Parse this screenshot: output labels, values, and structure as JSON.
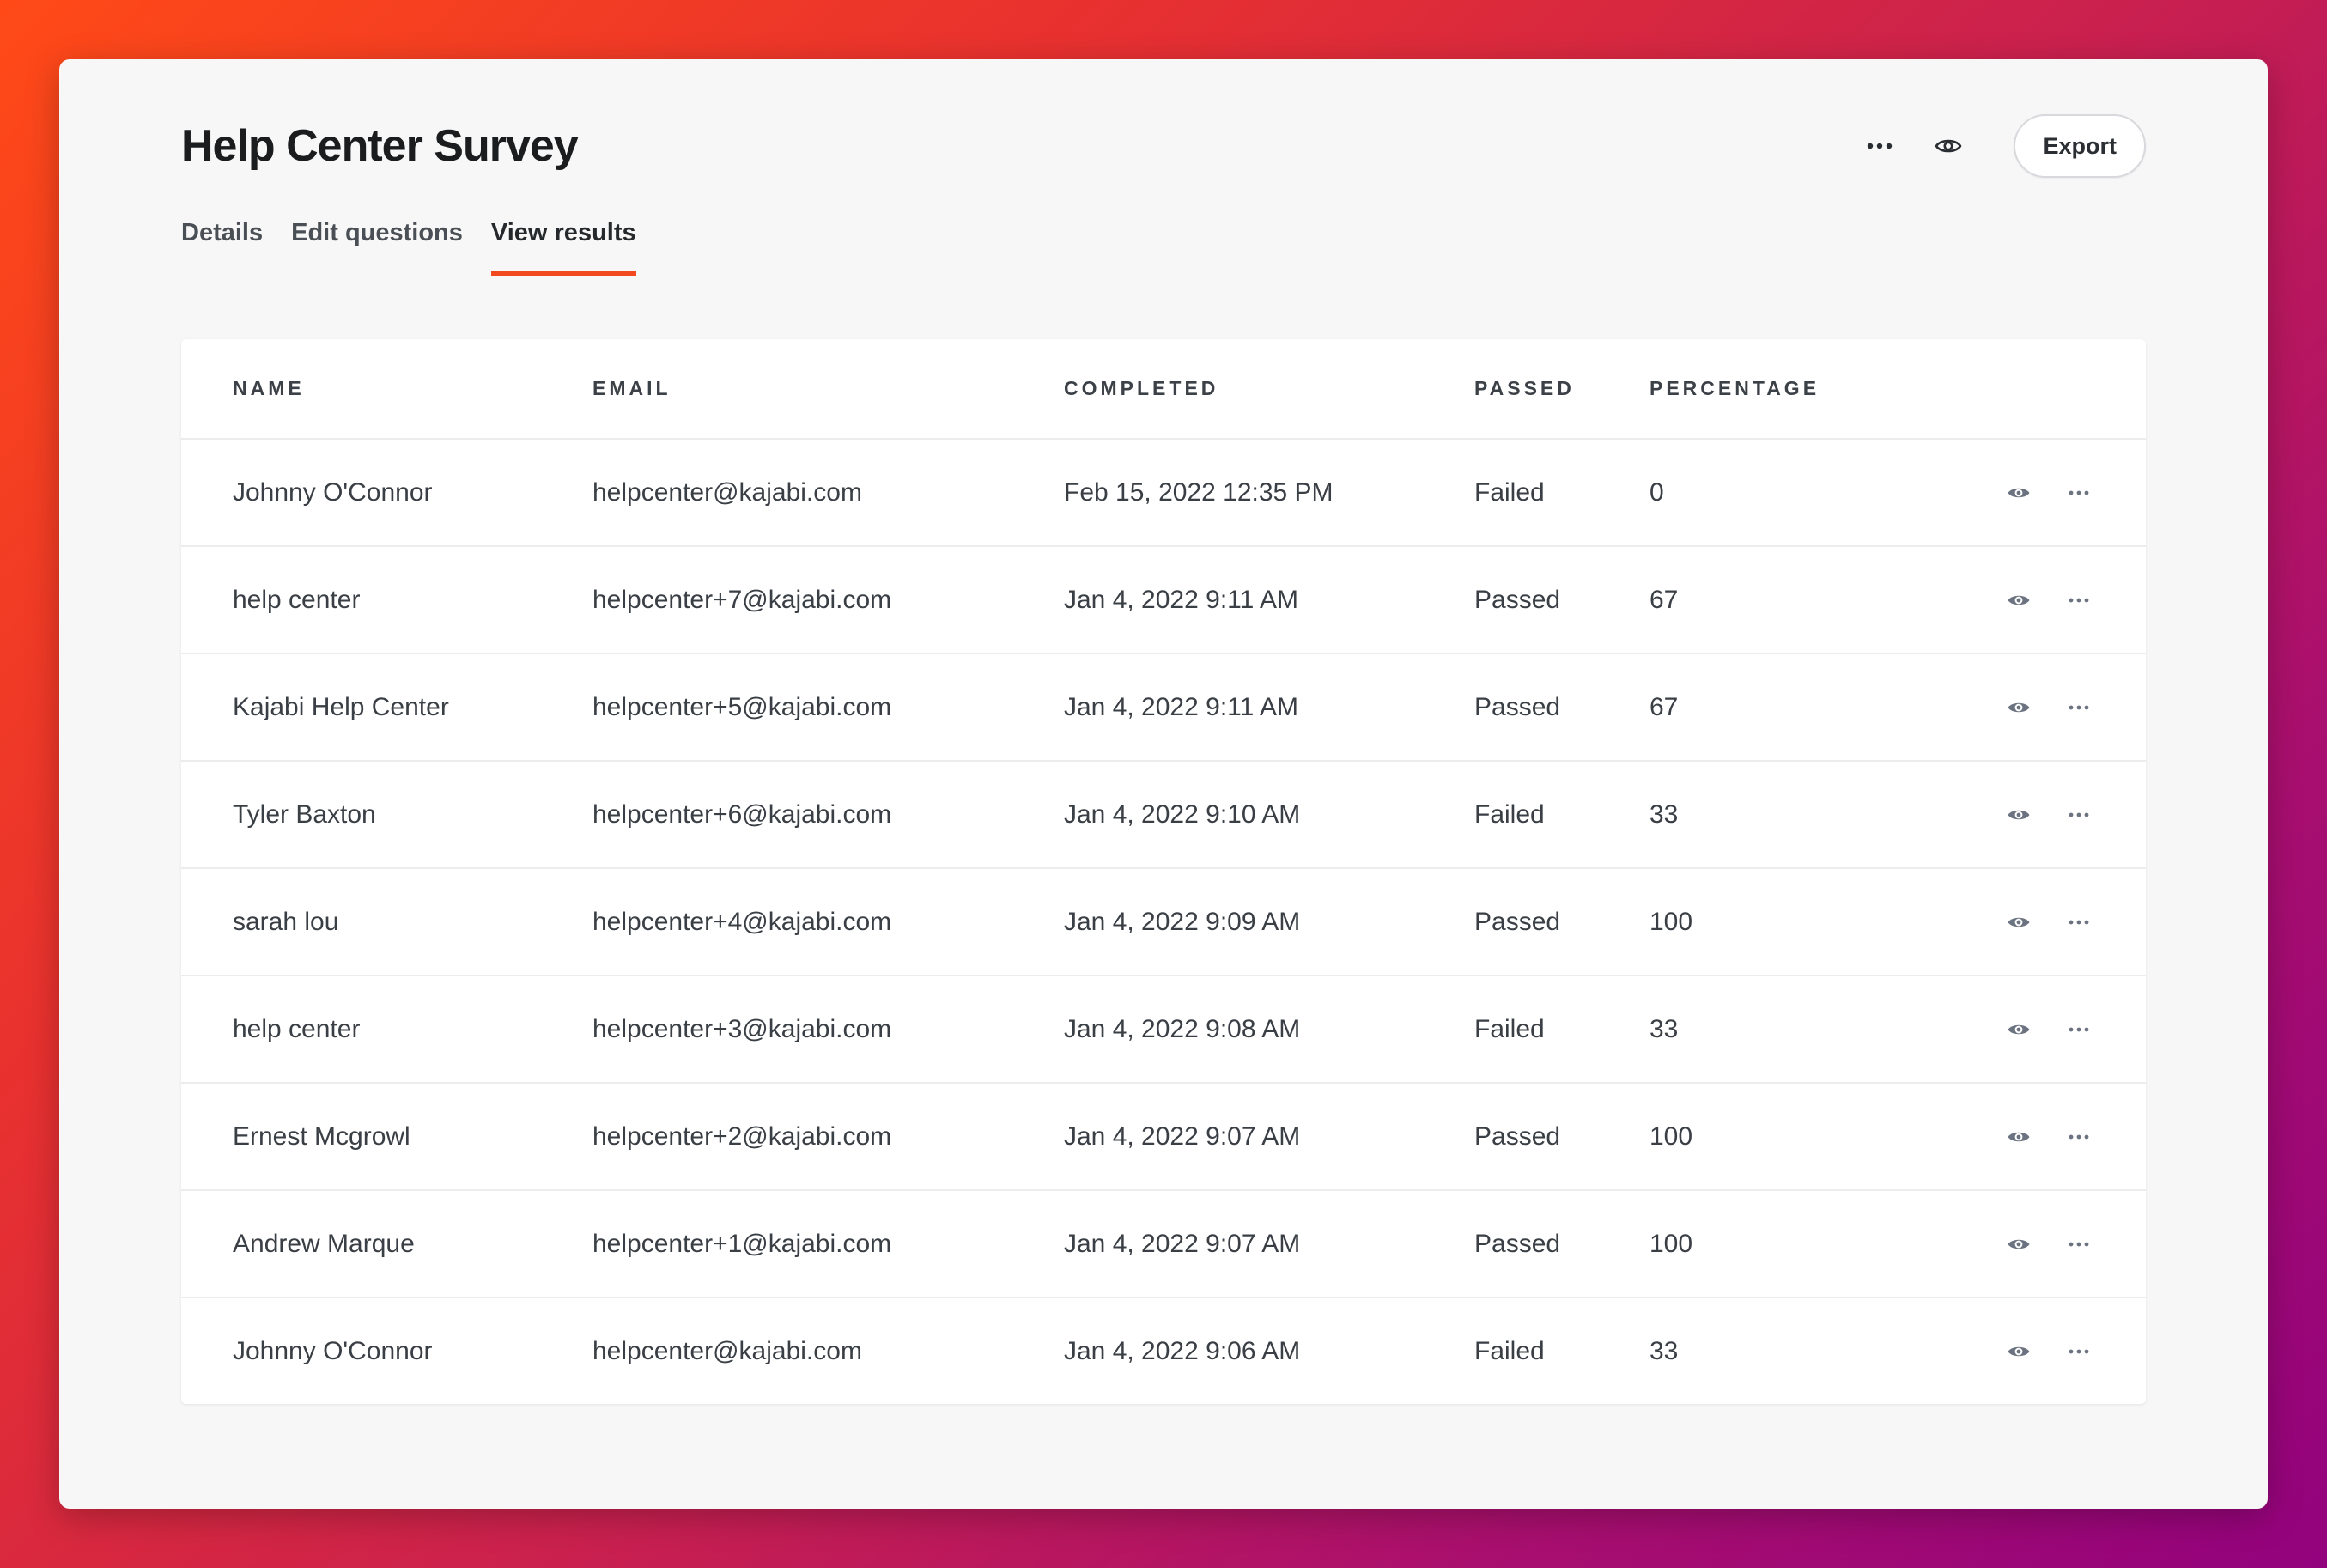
{
  "page": {
    "title": "Help Center Survey",
    "accent_color": "#f2491f"
  },
  "header_actions": {
    "more_icon": "more-horizontal-icon",
    "preview_icon": "eye-icon",
    "export_label": "Export"
  },
  "tabs": [
    {
      "label": "Details",
      "active": false
    },
    {
      "label": "Edit questions",
      "active": false
    },
    {
      "label": "View results",
      "active": true
    }
  ],
  "table": {
    "columns": [
      "NAME",
      "EMAIL",
      "COMPLETED",
      "PASSED",
      "PERCENTAGE"
    ],
    "rows": [
      {
        "name": "Johnny O'Connor",
        "email": "helpcenter@kajabi.com",
        "completed": "Feb 15, 2022 12:35 PM",
        "passed": "Failed",
        "percentage": "0"
      },
      {
        "name": "help center",
        "email": "helpcenter+7@kajabi.com",
        "completed": "Jan 4, 2022 9:11 AM",
        "passed": "Passed",
        "percentage": "67"
      },
      {
        "name": "Kajabi Help Center",
        "email": "helpcenter+5@kajabi.com",
        "completed": "Jan 4, 2022 9:11 AM",
        "passed": "Passed",
        "percentage": "67"
      },
      {
        "name": "Tyler Baxton",
        "email": "helpcenter+6@kajabi.com",
        "completed": "Jan 4, 2022 9:10 AM",
        "passed": "Failed",
        "percentage": "33"
      },
      {
        "name": "sarah lou",
        "email": "helpcenter+4@kajabi.com",
        "completed": "Jan 4, 2022 9:09 AM",
        "passed": "Passed",
        "percentage": "100"
      },
      {
        "name": "help center",
        "email": "helpcenter+3@kajabi.com",
        "completed": "Jan 4, 2022 9:08 AM",
        "passed": "Failed",
        "percentage": "33"
      },
      {
        "name": "Ernest Mcgrowl",
        "email": "helpcenter+2@kajabi.com",
        "completed": "Jan 4, 2022 9:07 AM",
        "passed": "Passed",
        "percentage": "100"
      },
      {
        "name": "Andrew Marque",
        "email": "helpcenter+1@kajabi.com",
        "completed": "Jan 4, 2022 9:07 AM",
        "passed": "Passed",
        "percentage": "100"
      },
      {
        "name": "Johnny O'Connor",
        "email": "helpcenter@kajabi.com",
        "completed": "Jan 4, 2022 9:06 AM",
        "passed": "Failed",
        "percentage": "33"
      }
    ],
    "row_icons": [
      "eye-icon",
      "more-horizontal-icon"
    ]
  }
}
